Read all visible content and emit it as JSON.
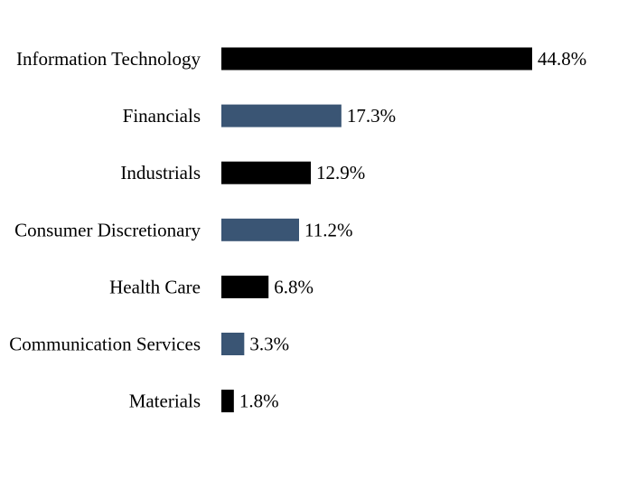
{
  "chart_data": {
    "type": "bar",
    "orientation": "horizontal",
    "title": "",
    "xlabel": "",
    "ylabel": "",
    "categories": [
      "Information Technology",
      "Financials",
      "Industrials",
      "Consumer Discretionary",
      "Health Care",
      "Communication Services",
      "Materials"
    ],
    "values": [
      44.8,
      17.3,
      12.9,
      11.2,
      6.8,
      3.3,
      1.8
    ],
    "value_labels": [
      "44.8%",
      "17.3%",
      "12.9%",
      "11.2%",
      "6.8%",
      "3.3%",
      "1.8%"
    ],
    "bar_colors": [
      "#000000",
      "#3a5574",
      "#000000",
      "#3a5574",
      "#000000",
      "#3a5574",
      "#000000"
    ],
    "xlim": [
      0,
      44.8
    ],
    "grid": false,
    "legend": "none"
  }
}
